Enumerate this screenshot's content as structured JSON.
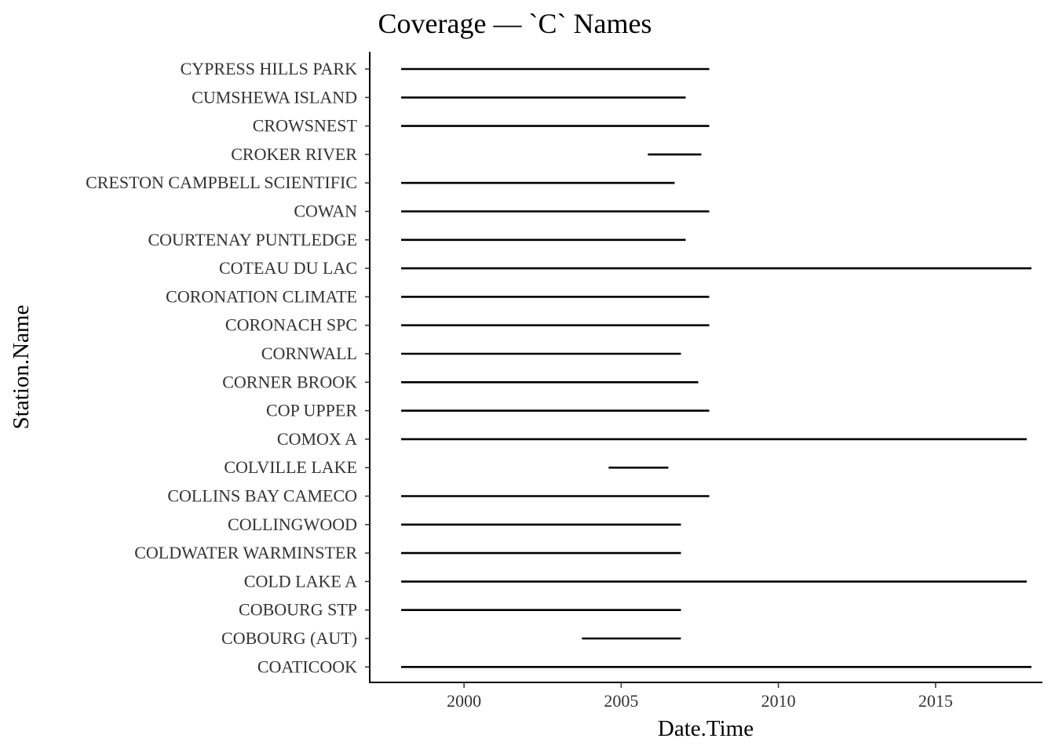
{
  "chart_data": {
    "type": "segment",
    "title": "Coverage — `C` Names",
    "xlabel": "Date.Time",
    "ylabel": "Station.Name",
    "xlim": [
      1997.0,
      2018.4
    ],
    "x_ticks": [
      2000,
      2005,
      2010,
      2015
    ],
    "x_tick_labels": [
      "2000",
      "2005",
      "2010",
      "2015"
    ],
    "grid": false,
    "legend": "none",
    "segment_color": "#000000",
    "series": [
      {
        "station": "CYPRESS HILLS PARK",
        "start": 1998.0,
        "end": 2007.8
      },
      {
        "station": "CUMSHEWA ISLAND",
        "start": 1998.0,
        "end": 2007.05
      },
      {
        "station": "CROWSNEST",
        "start": 1998.0,
        "end": 2007.8
      },
      {
        "station": "CROKER RIVER",
        "start": 2005.85,
        "end": 2007.55
      },
      {
        "station": "CRESTON CAMPBELL SCIENTIFIC",
        "start": 1998.0,
        "end": 2006.7
      },
      {
        "station": "COWAN",
        "start": 1998.0,
        "end": 2007.8
      },
      {
        "station": "COURTENAY PUNTLEDGE",
        "start": 1998.0,
        "end": 2007.05
      },
      {
        "station": "COTEAU DU LAC",
        "start": 1998.0,
        "end": 2018.05
      },
      {
        "station": "CORONATION CLIMATE",
        "start": 1998.0,
        "end": 2007.8
      },
      {
        "station": "CORONACH SPC",
        "start": 1998.0,
        "end": 2007.8
      },
      {
        "station": "CORNWALL",
        "start": 1998.0,
        "end": 2006.9
      },
      {
        "station": "CORNER BROOK",
        "start": 1998.0,
        "end": 2007.45
      },
      {
        "station": "COP UPPER",
        "start": 1998.0,
        "end": 2007.8
      },
      {
        "station": "COMOX A",
        "start": 1998.0,
        "end": 2017.9
      },
      {
        "station": "COLVILLE LAKE",
        "start": 2004.6,
        "end": 2006.5
      },
      {
        "station": "COLLINS BAY CAMECO",
        "start": 1998.0,
        "end": 2007.8
      },
      {
        "station": "COLLINGWOOD",
        "start": 1998.0,
        "end": 2006.9
      },
      {
        "station": "COLDWATER WARMINSTER",
        "start": 1998.0,
        "end": 2006.9
      },
      {
        "station": "COLD LAKE A",
        "start": 1998.0,
        "end": 2017.9
      },
      {
        "station": "COBOURG STP",
        "start": 1998.0,
        "end": 2006.9
      },
      {
        "station": "COBOURG (AUT)",
        "start": 2003.75,
        "end": 2006.9
      },
      {
        "station": "COATICOOK",
        "start": 1998.0,
        "end": 2018.05
      }
    ]
  }
}
